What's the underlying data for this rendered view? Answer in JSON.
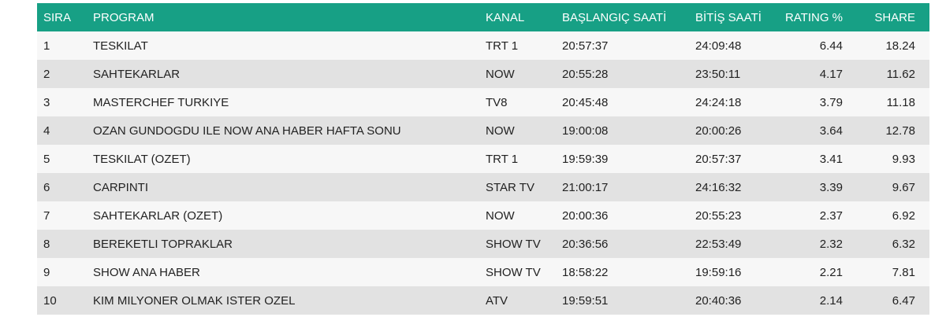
{
  "table": {
    "headers": {
      "sira": "SIRA",
      "program": "PROGRAM",
      "kanal": "KANAL",
      "baslangic": "BAŞLANGIÇ SAATİ",
      "bitis": "BİTİŞ SAATİ",
      "rating": "RATING %",
      "share": "SHARE"
    },
    "rows": [
      {
        "sira": "1",
        "program": "TESKILAT",
        "kanal": "TRT 1",
        "baslangic": "20:57:37",
        "bitis": "24:09:48",
        "rating": "6.44",
        "share": "18.24"
      },
      {
        "sira": "2",
        "program": "SAHTEKARLAR",
        "kanal": "NOW",
        "baslangic": "20:55:28",
        "bitis": "23:50:11",
        "rating": "4.17",
        "share": "11.62"
      },
      {
        "sira": "3",
        "program": "MASTERCHEF TURKIYE",
        "kanal": "TV8",
        "baslangic": "20:45:48",
        "bitis": "24:24:18",
        "rating": "3.79",
        "share": "11.18"
      },
      {
        "sira": "4",
        "program": "OZAN GUNDOGDU ILE NOW ANA HABER HAFTA SONU",
        "kanal": "NOW",
        "baslangic": "19:00:08",
        "bitis": "20:00:26",
        "rating": "3.64",
        "share": "12.78"
      },
      {
        "sira": "5",
        "program": "TESKILAT (OZET)",
        "kanal": "TRT 1",
        "baslangic": "19:59:39",
        "bitis": "20:57:37",
        "rating": "3.41",
        "share": "9.93"
      },
      {
        "sira": "6",
        "program": "CARPINTI",
        "kanal": "STAR TV",
        "baslangic": "21:00:17",
        "bitis": "24:16:32",
        "rating": "3.39",
        "share": "9.67"
      },
      {
        "sira": "7",
        "program": "SAHTEKARLAR (OZET)",
        "kanal": "NOW",
        "baslangic": "20:00:36",
        "bitis": "20:55:23",
        "rating": "2.37",
        "share": "6.92"
      },
      {
        "sira": "8",
        "program": "BEREKETLI TOPRAKLAR",
        "kanal": "SHOW TV",
        "baslangic": "20:36:56",
        "bitis": "22:53:49",
        "rating": "2.32",
        "share": "6.32"
      },
      {
        "sira": "9",
        "program": "SHOW ANA HABER",
        "kanal": "SHOW TV",
        "baslangic": "18:58:22",
        "bitis": "19:59:16",
        "rating": "2.21",
        "share": "7.81"
      },
      {
        "sira": "10",
        "program": "KIM MILYONER OLMAK ISTER OZEL",
        "kanal": "ATV",
        "baslangic": "19:59:51",
        "bitis": "20:40:36",
        "rating": "2.14",
        "share": "6.47"
      }
    ]
  },
  "colors": {
    "header_bg": "#17a085",
    "row_light": "#f7f7f7",
    "row_dark": "#e2e2e2"
  }
}
